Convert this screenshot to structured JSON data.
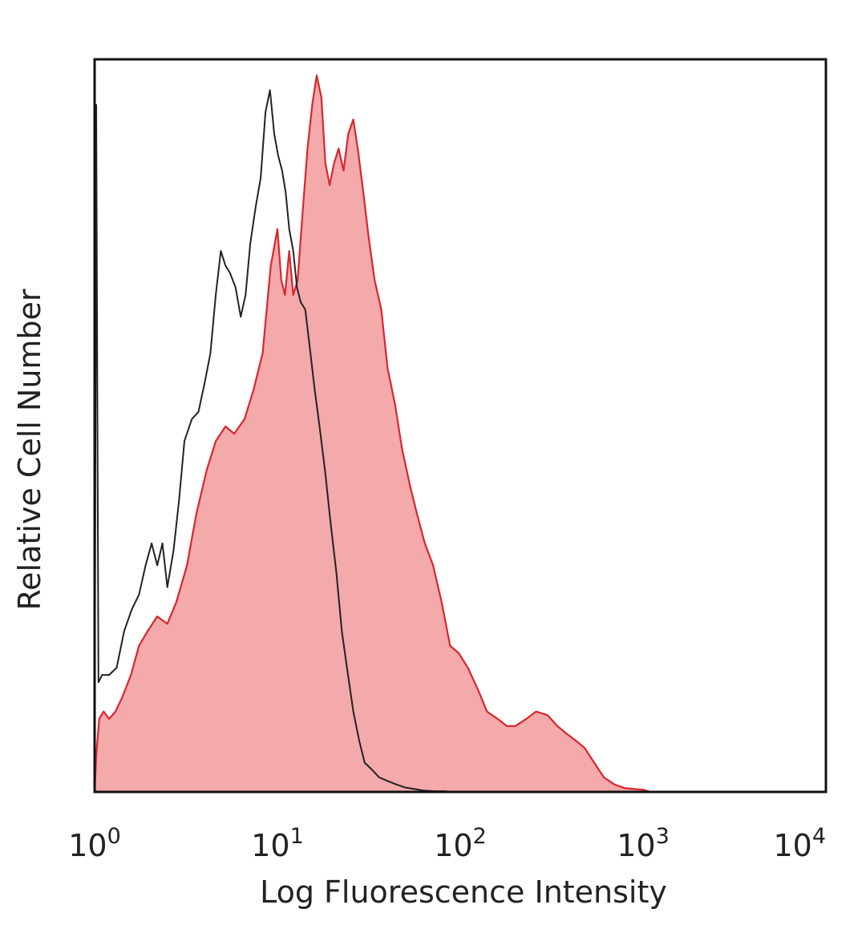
{
  "chart_data": {
    "type": "area",
    "title": "",
    "xlabel": "Log Fluorescence Intensity",
    "ylabel": "Relative Cell Number",
    "x_scale": "log10",
    "xlim": [
      1,
      10000
    ],
    "ylim": [
      0,
      100
    ],
    "y_ticks": "none",
    "grid": false,
    "legend": "none",
    "x_tick_labels": [
      {
        "value": 1,
        "base": "10",
        "exp": "0"
      },
      {
        "value": 10,
        "base": "10",
        "exp": "1"
      },
      {
        "value": 100,
        "base": "10",
        "exp": "2"
      },
      {
        "value": 1000,
        "base": "10",
        "exp": "3"
      },
      {
        "value": 10000,
        "base": "10",
        "exp": "4"
      }
    ],
    "series": [
      {
        "style": "filled",
        "fill_color": "#f4a9ab",
        "line_color": "#d8262e",
        "x": [
          1.0,
          1.02,
          1.06,
          1.12,
          1.2,
          1.3,
          1.42,
          1.58,
          1.75,
          1.95,
          2.2,
          2.5,
          2.8,
          3.2,
          3.6,
          4.1,
          4.6,
          5.2,
          5.8,
          6.6,
          7.4,
          8.3,
          9.2,
          10.0,
          10.5,
          11.0,
          11.6,
          12.2,
          12.9,
          13.8,
          14.6,
          15.5,
          16.4,
          17.4,
          18.3,
          19.3,
          20.4,
          21.6,
          23.0,
          24.4,
          26.0,
          27.5,
          29.5,
          31.5,
          34.0,
          37.0,
          40.0,
          44.0,
          48.0,
          53.0,
          58.0,
          64.0,
          71.0,
          79.0,
          88.0,
          98.0,
          110.0,
          125.0,
          140.0,
          160.0,
          180.0,
          200.0,
          230.0,
          260.0,
          300.0,
          340.0,
          380.0,
          430.0,
          480.0,
          540.0,
          610.0,
          700.0,
          800.0,
          900.0,
          1000.0,
          1100.0
        ],
        "y": [
          0,
          5,
          10,
          11,
          10,
          11,
          13,
          16,
          20,
          22,
          24,
          23,
          26,
          31,
          38,
          44,
          48,
          50,
          49,
          51,
          55,
          60,
          72,
          77,
          70,
          68,
          74,
          68,
          70,
          80,
          88,
          94,
          98,
          95,
          86,
          83,
          86,
          88,
          85,
          90,
          92,
          88,
          82,
          76,
          70,
          66,
          58,
          53,
          47,
          42,
          38,
          34,
          31,
          26,
          20,
          19,
          17,
          14,
          11,
          10,
          9,
          9,
          10,
          11,
          10.5,
          9,
          8,
          7,
          6,
          4,
          2,
          1,
          0.5,
          0.4,
          0.3,
          0
        ]
      },
      {
        "style": "outline",
        "line_color": "#222222",
        "x": [
          1.0,
          1.02,
          1.05,
          1.1,
          1.2,
          1.32,
          1.45,
          1.6,
          1.75,
          1.9,
          2.05,
          2.2,
          2.35,
          2.5,
          2.7,
          2.9,
          3.1,
          3.4,
          3.7,
          4.0,
          4.3,
          4.6,
          4.9,
          5.2,
          5.5,
          5.9,
          6.3,
          6.7,
          7.1,
          7.6,
          8.1,
          8.6,
          9.1,
          9.6,
          10.1,
          10.6,
          11.1,
          11.6,
          12.2,
          12.8,
          13.4,
          14.2,
          15.0,
          16.0,
          17.0,
          18.2,
          19.5,
          21.0,
          22.5,
          24.0,
          26.0,
          28.0,
          30.0,
          33.0,
          36.0,
          40.0,
          45.0,
          50.0,
          56.0,
          63.0,
          72.0,
          82.0,
          95.0,
          110.0,
          130.0,
          150.0
        ],
        "y": [
          0,
          94,
          15,
          16,
          16,
          17,
          22,
          25,
          27,
          31,
          34,
          31,
          34,
          28,
          33,
          40,
          48,
          51,
          52,
          56,
          60,
          68,
          74,
          72,
          71,
          69,
          65,
          68,
          75,
          80,
          84,
          93,
          96,
          90,
          87,
          85,
          82,
          77,
          74,
          69,
          67,
          66,
          61,
          55,
          50,
          44,
          37,
          30,
          22,
          17,
          11,
          7,
          4,
          3,
          2,
          1.5,
          1,
          0.6,
          0.4,
          0.2,
          0.1,
          0.1,
          0,
          0,
          0,
          0
        ]
      }
    ]
  }
}
